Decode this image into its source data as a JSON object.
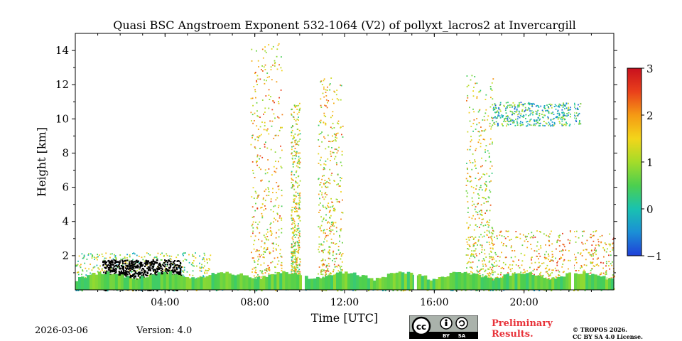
{
  "chart_data": {
    "type": "heatmap",
    "title": "Quasi BSC Angstroem Exponent 532-1064 (V2) of pollyxt_lacros2 at Invercargill",
    "xlabel": "Time [UTC]",
    "ylabel": "Height [km]",
    "xlim": [
      0,
      24
    ],
    "ylim": [
      0,
      15
    ],
    "x_ticks": [
      {
        "value": 4,
        "label": "04:00"
      },
      {
        "value": 8,
        "label": "08:00"
      },
      {
        "value": 12,
        "label": "12:00"
      },
      {
        "value": 16,
        "label": "16:00"
      },
      {
        "value": 20,
        "label": "20:00"
      }
    ],
    "y_ticks": [
      {
        "value": 2,
        "label": "2"
      },
      {
        "value": 4,
        "label": "4"
      },
      {
        "value": 6,
        "label": "6"
      },
      {
        "value": 8,
        "label": "8"
      },
      {
        "value": 10,
        "label": "10"
      },
      {
        "value": 12,
        "label": "12"
      },
      {
        "value": 14,
        "label": "14"
      }
    ],
    "colorbar": {
      "range": [
        -1,
        3
      ],
      "ticks": [
        {
          "value": 3,
          "label": "3"
        },
        {
          "value": 2,
          "label": "2"
        },
        {
          "value": 1,
          "label": "1"
        },
        {
          "value": 0,
          "label": "0"
        },
        {
          "value": -1,
          "label": "−1"
        }
      ],
      "colormap": [
        "#1f3fd8",
        "#1b8fd6",
        "#19c2b0",
        "#4ccf4f",
        "#a4dc29",
        "#f3d51a",
        "#f59a14",
        "#e9401b",
        "#c8101e"
      ]
    },
    "layers": [
      {
        "name": "boundary-layer",
        "x_range": [
          0,
          24
        ],
        "top_km": 0.6,
        "value": 0.6
      },
      {
        "name": "aerosol-layer-early",
        "x_range": [
          0,
          6
        ],
        "top_km": 2.2,
        "value": 0.8
      },
      {
        "name": "black-region",
        "x_range": [
          1.2,
          4.7
        ],
        "top_km": 1.8,
        "value": -1.5
      },
      {
        "name": "plume-08",
        "x_range": [
          7.8,
          9.2
        ],
        "top_km": 14.5,
        "value": 1.5
      },
      {
        "name": "plume-10",
        "x_range": [
          9.6,
          10.0
        ],
        "top_km": 11,
        "value": 1.2
      },
      {
        "name": "plume-11",
        "x_range": [
          10.8,
          11.9
        ],
        "top_km": 12.5,
        "value": 1.4
      },
      {
        "name": "plume-18",
        "x_range": [
          17.4,
          18.6
        ],
        "top_km": 12.6,
        "value": 1.3
      },
      {
        "name": "scatter-19-24",
        "x_range": [
          18.5,
          24
        ],
        "top_km": 3.5,
        "value": 1.6
      },
      {
        "name": "cirrus-20",
        "x_range": [
          18.6,
          22.5
        ],
        "top_km": 11,
        "value": 0.2
      }
    ],
    "data_gaps_utc": [
      10.1,
      15.1,
      22.1
    ]
  },
  "footer": {
    "date": "2026-03-06",
    "version": "Version: 4.0",
    "preliminary_line1": "Preliminary",
    "preliminary_line2": "Results.",
    "copyright_line1": "© TROPOS 2026.",
    "copyright_line2": "CC BY SA 4.0 License.",
    "license_badge": {
      "cc": "cc",
      "by": "BY",
      "sa": "SA"
    }
  }
}
